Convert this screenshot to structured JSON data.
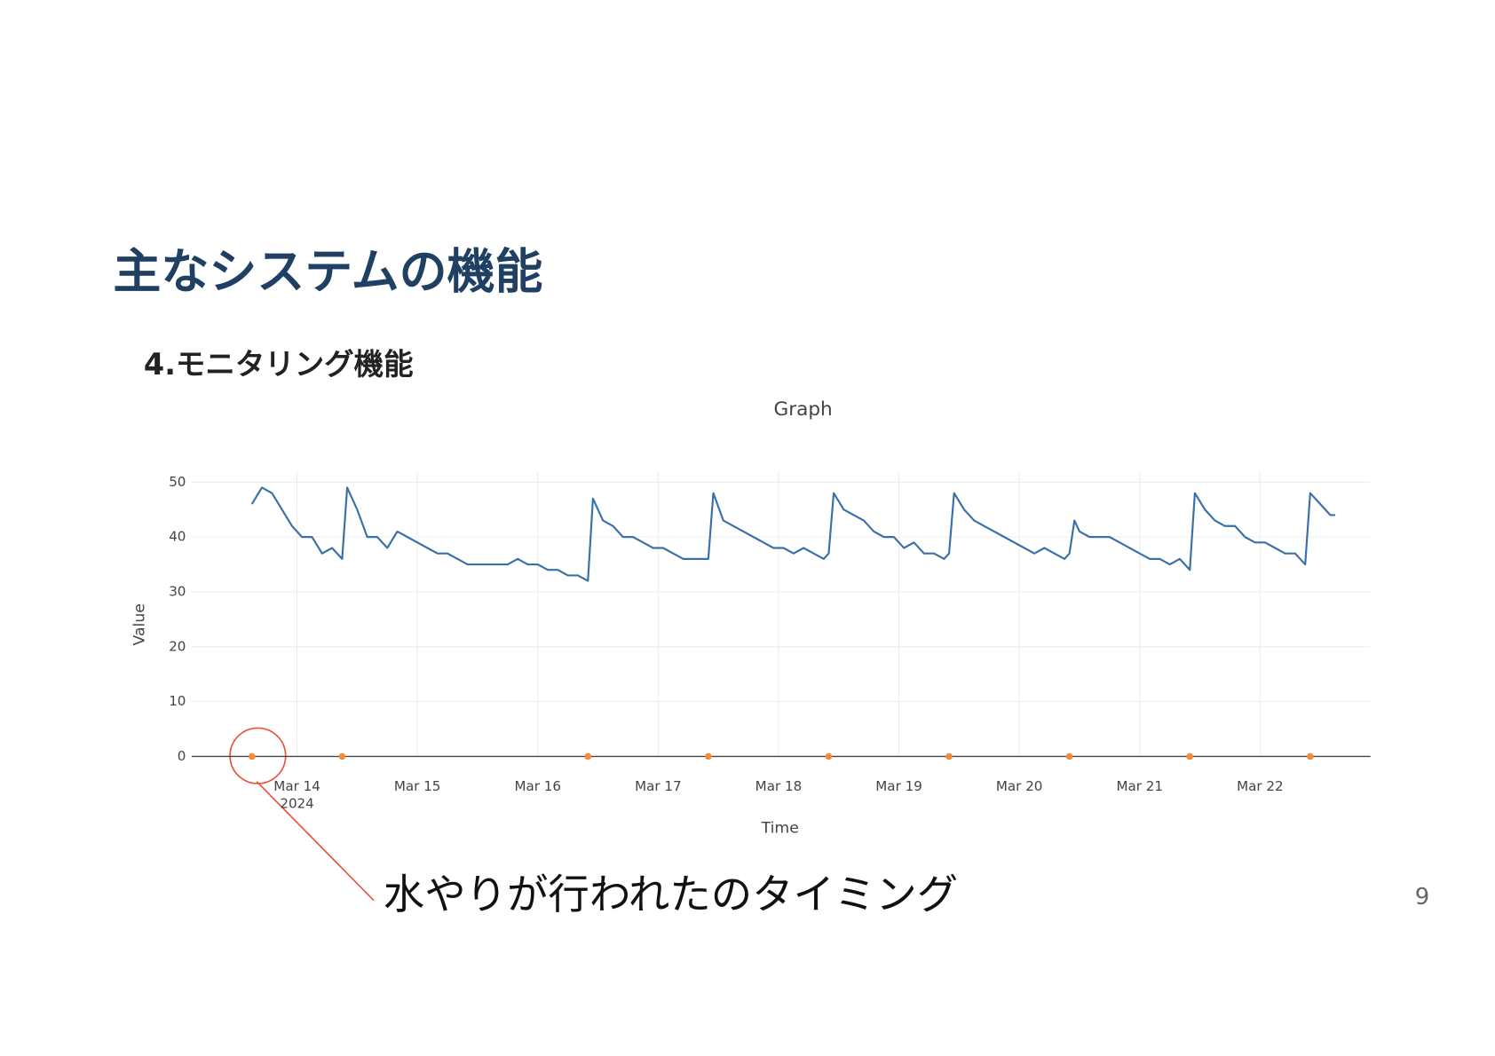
{
  "slide": {
    "title": "主なシステムの機能",
    "subtitle": "4.モニタリング機能",
    "annotation": "水やりが行われたのタイミング",
    "page_number": "9"
  },
  "chart_data": {
    "type": "line",
    "title": "Graph",
    "x_label": "Time",
    "y_label": "Value",
    "xlim": [
      "2024-03-13 03:00",
      "2024-03-22 22:00"
    ],
    "xticks": [
      {
        "value": "2024-03-14 00:00",
        "label": "Mar 14\n2024"
      },
      {
        "value": "2024-03-15 00:00",
        "label": "Mar 15"
      },
      {
        "value": "2024-03-16 00:00",
        "label": "Mar 16"
      },
      {
        "value": "2024-03-17 00:00",
        "label": "Mar 17"
      },
      {
        "value": "2024-03-18 00:00",
        "label": "Mar 18"
      },
      {
        "value": "2024-03-19 00:00",
        "label": "Mar 19"
      },
      {
        "value": "2024-03-20 00:00",
        "label": "Mar 20"
      },
      {
        "value": "2024-03-21 00:00",
        "label": "Mar 21"
      },
      {
        "value": "2024-03-22 00:00",
        "label": "Mar 22"
      }
    ],
    "ylim": [
      -1.8,
      51.8
    ],
    "yticks": [
      0,
      10,
      20,
      30,
      40,
      50
    ],
    "grid": true,
    "series": [
      {
        "type": "line",
        "color": "#3a70a8",
        "x": [
          "2024-03-13 15:00",
          "2024-03-13 17:00",
          "2024-03-13 19:00",
          "2024-03-13 21:00",
          "2024-03-13 23:00",
          "2024-03-14 01:00",
          "2024-03-14 03:00",
          "2024-03-14 05:00",
          "2024-03-14 07:00",
          "2024-03-14 08:00",
          "2024-03-14 09:00",
          "2024-03-14 10:00",
          "2024-03-14 12:00",
          "2024-03-14 14:00",
          "2024-03-14 16:00",
          "2024-03-14 18:00",
          "2024-03-14 20:00",
          "2024-03-14 22:00",
          "2024-03-15 00:00",
          "2024-03-15 02:00",
          "2024-03-15 04:00",
          "2024-03-15 06:00",
          "2024-03-15 08:00",
          "2024-03-15 10:00",
          "2024-03-15 14:00",
          "2024-03-15 18:00",
          "2024-03-15 20:00",
          "2024-03-15 22:00",
          "2024-03-16 00:00",
          "2024-03-16 02:00",
          "2024-03-16 04:00",
          "2024-03-16 06:00",
          "2024-03-16 08:00",
          "2024-03-16 10:00",
          "2024-03-16 11:00",
          "2024-03-16 13:00",
          "2024-03-16 15:00",
          "2024-03-16 17:00",
          "2024-03-16 19:00",
          "2024-03-16 21:00",
          "2024-03-16 23:00",
          "2024-03-17 01:00",
          "2024-03-17 03:00",
          "2024-03-17 05:00",
          "2024-03-17 07:00",
          "2024-03-17 09:00",
          "2024-03-17 10:00",
          "2024-03-17 11:00",
          "2024-03-17 13:00",
          "2024-03-17 15:00",
          "2024-03-17 17:00",
          "2024-03-17 19:00",
          "2024-03-17 21:00",
          "2024-03-17 23:00",
          "2024-03-18 01:00",
          "2024-03-18 03:00",
          "2024-03-18 05:00",
          "2024-03-18 07:00",
          "2024-03-18 09:00",
          "2024-03-18 10:00",
          "2024-03-18 11:00",
          "2024-03-18 13:00",
          "2024-03-18 15:00",
          "2024-03-18 17:00",
          "2024-03-18 19:00",
          "2024-03-18 21:00",
          "2024-03-18 23:00",
          "2024-03-19 01:00",
          "2024-03-19 03:00",
          "2024-03-19 05:00",
          "2024-03-19 07:00",
          "2024-03-19 09:00",
          "2024-03-19 10:00",
          "2024-03-19 11:00",
          "2024-03-19 13:00",
          "2024-03-19 15:00",
          "2024-03-19 17:00",
          "2024-03-19 19:00",
          "2024-03-19 21:00",
          "2024-03-19 23:00",
          "2024-03-20 01:00",
          "2024-03-20 03:00",
          "2024-03-20 05:00",
          "2024-03-20 07:00",
          "2024-03-20 09:00",
          "2024-03-20 10:00",
          "2024-03-20 11:00",
          "2024-03-20 12:00",
          "2024-03-20 14:00",
          "2024-03-20 16:00",
          "2024-03-20 18:00",
          "2024-03-20 20:00",
          "2024-03-20 22:00",
          "2024-03-21 00:00",
          "2024-03-21 02:00",
          "2024-03-21 04:00",
          "2024-03-21 06:00",
          "2024-03-21 08:00",
          "2024-03-21 10:00",
          "2024-03-21 11:00",
          "2024-03-21 13:00",
          "2024-03-21 15:00",
          "2024-03-21 17:00",
          "2024-03-21 19:00",
          "2024-03-21 21:00",
          "2024-03-21 23:00",
          "2024-03-22 01:00",
          "2024-03-22 03:00",
          "2024-03-22 05:00",
          "2024-03-22 07:00",
          "2024-03-22 09:00",
          "2024-03-22 10:00",
          "2024-03-22 12:00",
          "2024-03-22 14:00",
          "2024-03-22 15:00"
        ],
        "values": [
          46,
          49,
          48,
          45,
          42,
          40,
          40,
          37,
          38,
          37,
          36,
          49,
          45,
          40,
          40,
          38,
          41,
          40,
          39,
          38,
          37,
          37,
          36,
          35,
          35,
          35,
          36,
          35,
          35,
          34,
          34,
          33,
          33,
          32,
          47,
          43,
          42,
          40,
          40,
          39,
          38,
          38,
          37,
          36,
          36,
          36,
          36,
          48,
          43,
          42,
          41,
          40,
          39,
          38,
          38,
          37,
          38,
          37,
          36,
          37,
          48,
          45,
          44,
          43,
          41,
          40,
          40,
          38,
          39,
          37,
          37,
          36,
          37,
          48,
          45,
          43,
          42,
          41,
          40,
          39,
          38,
          37,
          38,
          37,
          36,
          37,
          43,
          41,
          40,
          40,
          40,
          39,
          38,
          37,
          36,
          36,
          35,
          36,
          34,
          48,
          45,
          43,
          42,
          42,
          40,
          39,
          39,
          38,
          37,
          37,
          35,
          48,
          46,
          44,
          44
        ]
      },
      {
        "type": "scatter",
        "color": "#f28b3c",
        "x": [
          "2024-03-13 15:00",
          "2024-03-14 09:00",
          "2024-03-16 10:00",
          "2024-03-17 10:00",
          "2024-03-18 10:00",
          "2024-03-19 10:00",
          "2024-03-20 10:00",
          "2024-03-21 10:00",
          "2024-03-22 10:00"
        ],
        "values": [
          0,
          0,
          0,
          0,
          0,
          0,
          0,
          0,
          0
        ]
      }
    ]
  }
}
